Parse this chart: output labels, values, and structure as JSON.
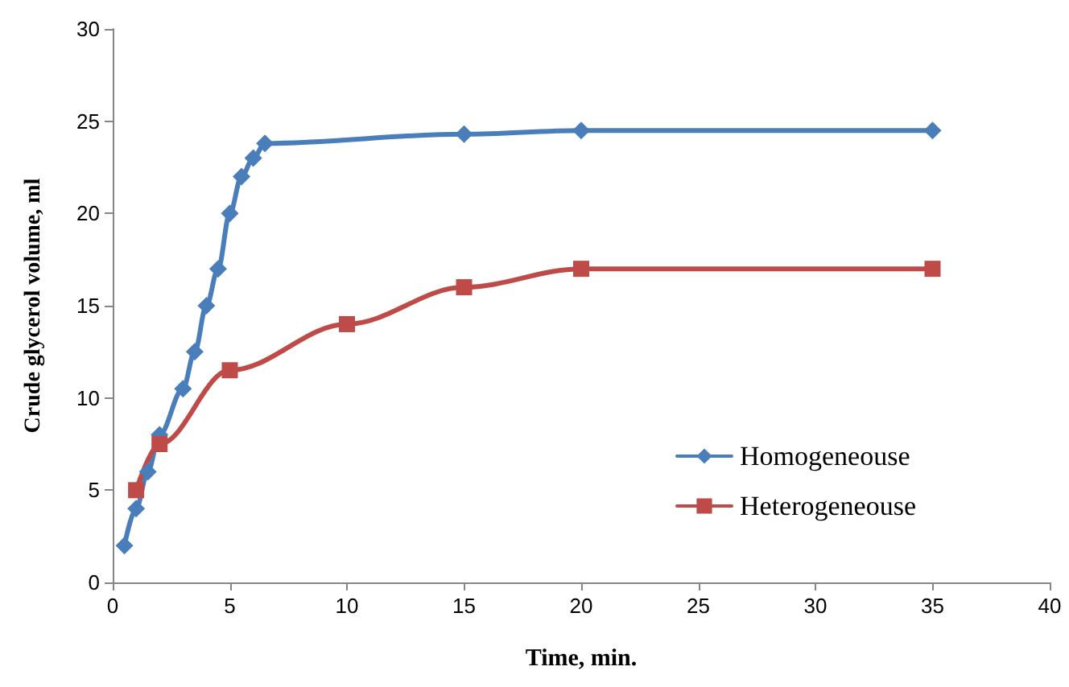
{
  "chart_data": {
    "type": "line",
    "xlabel": "Time, min.",
    "ylabel": "Crude glycerol volume, ml",
    "xlim": [
      0,
      40
    ],
    "xticks": [
      0,
      5,
      10,
      15,
      20,
      25,
      30,
      35,
      40
    ],
    "ylim": [
      0,
      30
    ],
    "yticks": [
      0,
      5,
      10,
      15,
      20,
      25,
      30
    ],
    "grid": false,
    "legend": "right",
    "line_style": "solid",
    "series": [
      {
        "name": "Homogeneouse",
        "color": "#4a7ebb",
        "marker": "diamond",
        "x": [
          0.5,
          1,
          1.5,
          2,
          3,
          3.5,
          4,
          4.5,
          5,
          5.5,
          6,
          6.5,
          15,
          20,
          35
        ],
        "values": [
          2,
          4,
          6,
          8,
          10.5,
          12.5,
          15,
          17,
          20,
          22,
          23,
          23.8,
          24.3,
          24.5,
          24.5
        ]
      },
      {
        "name": "Heterogeneouse",
        "color": "#be4b48",
        "marker": "square",
        "x": [
          1,
          2,
          5,
          10,
          15,
          20,
          35
        ],
        "values": [
          5,
          7.5,
          11.5,
          14,
          16,
          17,
          17
        ]
      }
    ]
  }
}
